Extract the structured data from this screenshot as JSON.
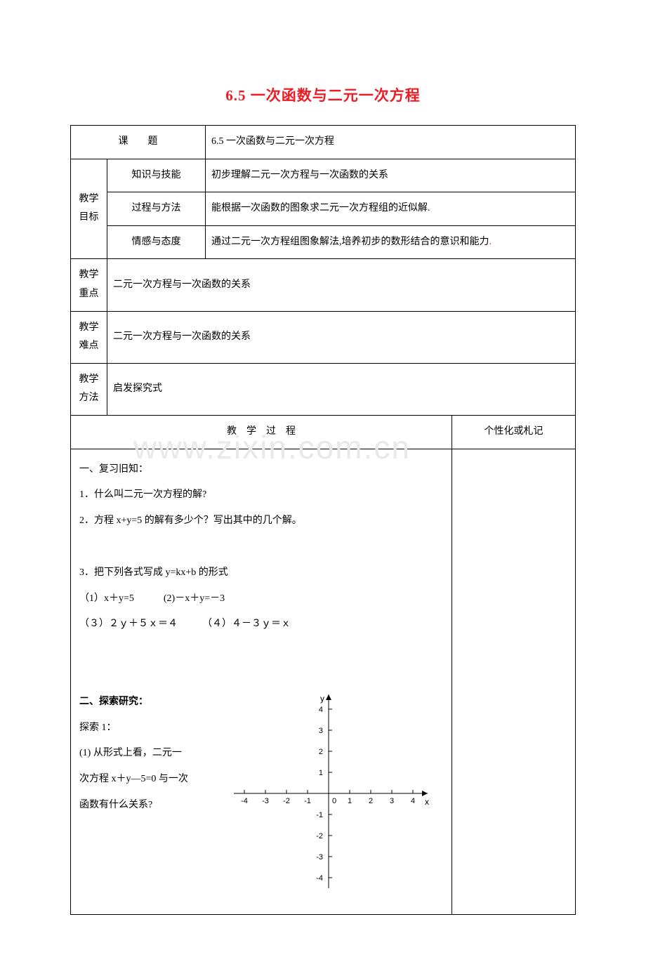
{
  "title": "6.5 一次函数与二元一次方程",
  "watermark": "www.zixin.com.cn",
  "rows": {
    "topic_label": "课　　题",
    "topic_value": "6.5 一次函数与二元一次方程",
    "goal_label": "教学目标",
    "goal1_label": "知识与技能",
    "goal1_value_a": "初步理解二元一次方程与一次函数的关系",
    "goal2_label": "过程与方法",
    "goal2_value": "能根据一次函数的图象求二元一次方程组的近似解.",
    "goal3_label": "情感与态度",
    "goal3_value": "通过二元一次方程组图象解法,培养初步的数形结合的意识和能力",
    "focus_label": "教学重点",
    "focus_value": "二元一次方程与一次函数的关系",
    "diff_label": "教学难点",
    "diff_value": "二元一次方程与一次函数的关系",
    "method_label": "教学方法",
    "method_value": "启发探究式",
    "process_label": "教　学　过　程",
    "notes_label": "个性化或札记"
  },
  "content": {
    "sec1_title": "一、复习旧知：",
    "q1": "1．什么叫二元一次方程的解?",
    "q2": "2．方程 x+y=5 的解有多少个？写出其中的几个解。",
    "q3": "3．把下列各式写成 y=kx+b 的形式",
    "q3_1": "（1）x＋y=5　　　(2)－x＋y=－3",
    "q3_2": "（３）２ｙ＋５ｘ＝４　　　（４）４－３ｙ＝ｘ",
    "sec2_title": "二、探索研究：",
    "ex1": "探索 1：",
    "p1a": "(1) 从形式上看，二元一",
    "p1b": "次方程 x＋y—5=0 与一次",
    "p1c": "函数有什么关系?"
  },
  "axis": {
    "ticks": [
      -4,
      -3,
      -2,
      -1,
      0,
      1,
      2,
      3,
      4
    ],
    "yticks": [
      4,
      3,
      2,
      1,
      -1,
      -2,
      -3,
      -4
    ],
    "xlabel": "x",
    "ylabel": "y",
    "size": 290,
    "center": 145,
    "step": 30,
    "tick_len": 5,
    "font_size": 11,
    "stroke": "#000000",
    "stroke_width": 1
  }
}
